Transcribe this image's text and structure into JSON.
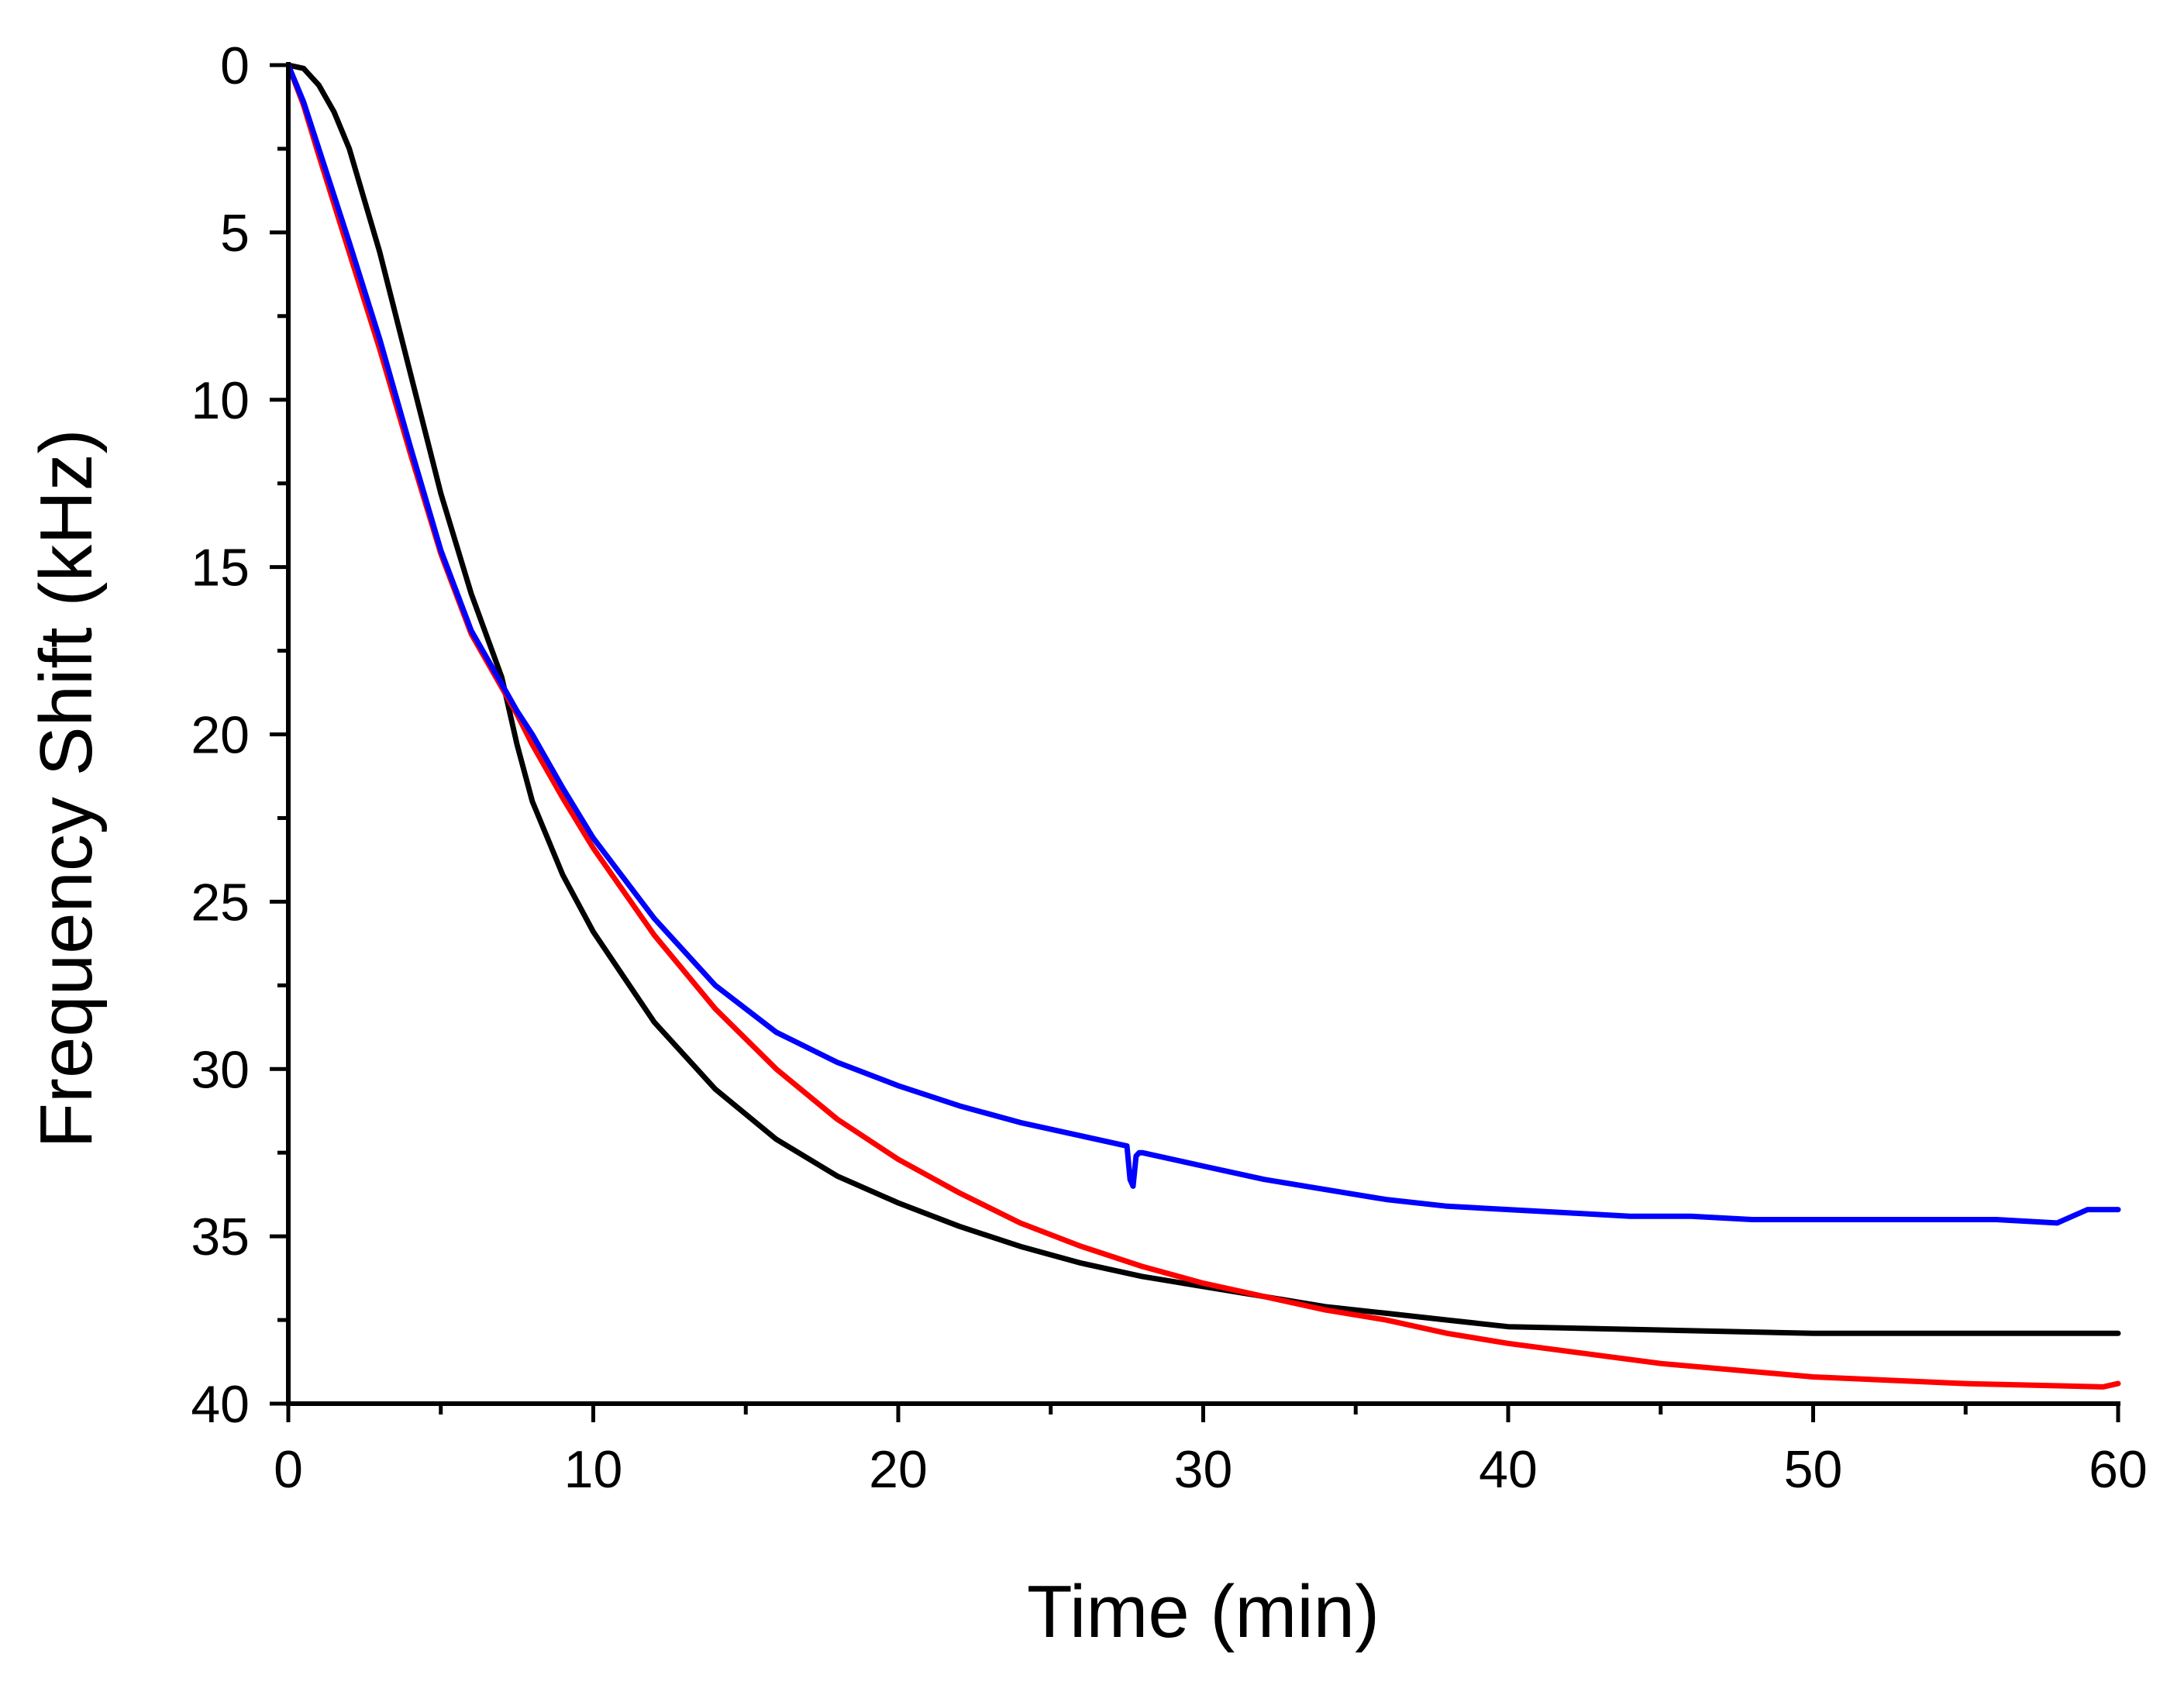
{
  "chart_data": {
    "type": "line",
    "title": "",
    "xlabel": "Time (min)",
    "ylabel": "Frequency Shift (kHz)",
    "xlim": [
      0,
      60
    ],
    "ylim": [
      0,
      40
    ],
    "y_inverted": true,
    "x_ticks": [
      0,
      10,
      20,
      30,
      40,
      50,
      60
    ],
    "x_tick_labels": [
      "0",
      "10",
      "20",
      "30",
      "40",
      "50",
      "60"
    ],
    "y_ticks": [
      0,
      5,
      10,
      15,
      20,
      25,
      30,
      35,
      40
    ],
    "y_tick_labels": [
      "0",
      "5",
      "10",
      "15",
      "20",
      "25",
      "30",
      "35",
      "40"
    ],
    "x_minor_step": 5,
    "y_minor_step": 2.5,
    "grid": false,
    "legend": "none",
    "series": [
      {
        "name": "black",
        "color": "#000000",
        "x": [
          0,
          0.5,
          1,
          1.5,
          2,
          3,
          4,
          5,
          6,
          7,
          7.5,
          8,
          9,
          10,
          12,
          14,
          16,
          18,
          20,
          22,
          24,
          26,
          28,
          30,
          32,
          34,
          36,
          38,
          40,
          45,
          50,
          55,
          60
        ],
        "y": [
          0,
          0.1,
          0.6,
          1.4,
          2.5,
          5.6,
          9.2,
          12.8,
          15.8,
          18.3,
          20.3,
          22.0,
          24.2,
          25.9,
          28.6,
          30.6,
          32.1,
          33.2,
          34.0,
          34.7,
          35.3,
          35.8,
          36.2,
          36.5,
          36.8,
          37.1,
          37.3,
          37.5,
          37.7,
          37.8,
          37.9,
          37.9,
          37.9
        ]
      },
      {
        "name": "red",
        "color": "#ff0000",
        "x": [
          0,
          0.5,
          1,
          2,
          3,
          4,
          5,
          6,
          7,
          7.5,
          8,
          9,
          10,
          12,
          14,
          16,
          18,
          20,
          22,
          24,
          26,
          28,
          30,
          32,
          34,
          36,
          38,
          40,
          45,
          50,
          55,
          59.5,
          60
        ],
        "y": [
          0,
          1.2,
          2.7,
          5.6,
          8.5,
          11.6,
          14.6,
          17.0,
          18.6,
          19.4,
          20.3,
          21.9,
          23.4,
          26.0,
          28.2,
          30.0,
          31.5,
          32.7,
          33.7,
          34.6,
          35.3,
          35.9,
          36.4,
          36.8,
          37.2,
          37.5,
          37.9,
          38.2,
          38.8,
          39.2,
          39.4,
          39.5,
          39.4
        ]
      },
      {
        "name": "blue",
        "color": "#0000ff",
        "x": [
          0,
          0.5,
          1,
          2,
          3,
          4,
          5,
          6,
          7,
          7.5,
          8,
          9,
          10,
          12,
          14,
          16,
          18,
          20,
          22,
          24,
          26,
          27.5,
          27.6,
          27.7,
          27.8,
          27.9,
          28,
          30,
          32,
          34,
          36,
          38,
          40,
          42,
          44,
          46,
          48,
          50,
          52,
          54,
          56,
          58,
          58.5,
          59,
          60
        ],
        "y": [
          0,
          1.1,
          2.5,
          5.3,
          8.2,
          11.4,
          14.5,
          16.9,
          18.5,
          19.3,
          20.0,
          21.6,
          23.1,
          25.5,
          27.5,
          28.9,
          29.8,
          30.5,
          31.1,
          31.6,
          32.0,
          32.3,
          33.3,
          33.5,
          32.6,
          32.5,
          32.5,
          32.9,
          33.3,
          33.6,
          33.9,
          34.1,
          34.2,
          34.3,
          34.4,
          34.4,
          34.5,
          34.5,
          34.5,
          34.5,
          34.5,
          34.6,
          34.4,
          34.2,
          34.2
        ]
      }
    ]
  }
}
